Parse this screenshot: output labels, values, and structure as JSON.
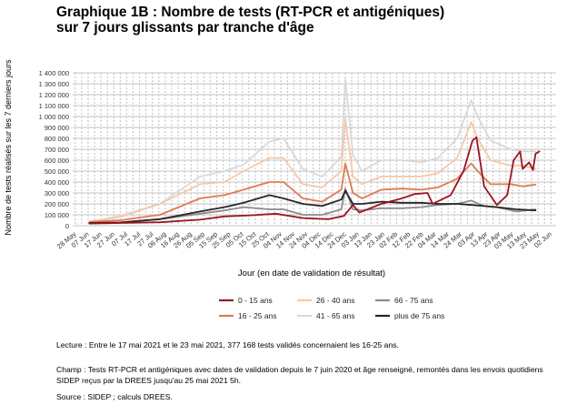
{
  "title_line1": "Graphique 1B : Nombre de tests (RT-PCR et antigéniques)",
  "title_line2": "sur 7 jours glissants par tranche d'âge",
  "notes": {
    "lecture": "Lecture : Entre le 17 mai 2021 et le 23 mai 2021, 377 168 tests validés concernaient les 16-25 ans.",
    "champ": "Champ : Tests RT-PCR et antigéniques avec dates de validation depuis le 7 juin 2020 et âge renseigné, remontés dans les envois quotidiens SIDEP reçus par la DREES jusqu'au 25 mai 2021 5h.",
    "source": "Source : SIDEP ; calculs DREES."
  },
  "colors": {
    "0-15": "#9b1421",
    "16-25": "#e07a52",
    "26-40": "#f6c8a8",
    "41-65": "#d9d9d9",
    "66-75": "#8c8c8c",
    "75plus": "#262626",
    "grid": "#d8d8d8",
    "dashed": "#c8c8c8"
  },
  "chart_data": {
    "type": "line",
    "title": "Graphique 1B : Nombre de tests (RT-PCR et antigéniques) sur 7 jours glissants par tranche d'âge",
    "xlabel": "Jour (en date de validation de résultat)",
    "ylabel": "Nombre de tests réalisés sur les 7 derniers jours",
    "x_axis_type": "date",
    "xlim": [
      "2020-05-25",
      "2021-06-05"
    ],
    "ylim": [
      0,
      1400000
    ],
    "yticks": [
      0,
      100000,
      200000,
      300000,
      400000,
      500000,
      600000,
      700000,
      800000,
      900000,
      1000000,
      1100000,
      1200000,
      1300000,
      1400000
    ],
    "ytick_labels": [
      "0",
      "100 000",
      "200 000",
      "300 000",
      "400 000",
      "500 000",
      "600 000",
      "700 000",
      "800 000",
      "900 000",
      "1 000 000",
      "1 100 000",
      "1 200 000",
      "1 300 000",
      "1 400 000"
    ],
    "xticks": [
      {
        "date": "2020-05-28",
        "label": "28 May"
      },
      {
        "date": "2020-06-07",
        "label": "07 Jun"
      },
      {
        "date": "2020-06-17",
        "label": "17 Jun"
      },
      {
        "date": "2020-06-27",
        "label": "27 Jun"
      },
      {
        "date": "2020-07-07",
        "label": "07 Jul"
      },
      {
        "date": "2020-07-17",
        "label": "17 Jul"
      },
      {
        "date": "2020-07-27",
        "label": "27 Jul"
      },
      {
        "date": "2020-08-06",
        "label": "06 Aug"
      },
      {
        "date": "2020-08-16",
        "label": "16 Aug"
      },
      {
        "date": "2020-08-26",
        "label": "26 Aug"
      },
      {
        "date": "2020-09-05",
        "label": "05 Sep"
      },
      {
        "date": "2020-09-15",
        "label": "15 Sep"
      },
      {
        "date": "2020-09-25",
        "label": "25 Sep"
      },
      {
        "date": "2020-10-05",
        "label": "05 Oct"
      },
      {
        "date": "2020-10-15",
        "label": "15 Oct"
      },
      {
        "date": "2020-10-25",
        "label": "25 Oct"
      },
      {
        "date": "2020-11-04",
        "label": "04 Nov"
      },
      {
        "date": "2020-11-14",
        "label": "14 Nov"
      },
      {
        "date": "2020-11-24",
        "label": "24 Nov"
      },
      {
        "date": "2020-12-04",
        "label": "04 Dec"
      },
      {
        "date": "2020-12-14",
        "label": "14 Dec"
      },
      {
        "date": "2020-12-24",
        "label": "24 Dec"
      },
      {
        "date": "2021-01-03",
        "label": "03 Jan"
      },
      {
        "date": "2021-01-13",
        "label": "13 Jan"
      },
      {
        "date": "2021-01-23",
        "label": "23 Jan"
      },
      {
        "date": "2021-02-02",
        "label": "02 Feb"
      },
      {
        "date": "2021-02-12",
        "label": "12 Feb"
      },
      {
        "date": "2021-02-22",
        "label": "22 Feb"
      },
      {
        "date": "2021-03-04",
        "label": "04 Mar"
      },
      {
        "date": "2021-03-14",
        "label": "14 Mar"
      },
      {
        "date": "2021-03-24",
        "label": "24 Mar"
      },
      {
        "date": "2021-04-03",
        "label": "03 Apr"
      },
      {
        "date": "2021-04-13",
        "label": "13 Apr"
      },
      {
        "date": "2021-04-23",
        "label": "23 Apr"
      },
      {
        "date": "2021-05-03",
        "label": "03 May"
      },
      {
        "date": "2021-05-13",
        "label": "13 May"
      },
      {
        "date": "2021-05-23",
        "label": "23 May"
      },
      {
        "date": "2021-06-02",
        "label": "02 Jun"
      }
    ],
    "legend_position": "bottom",
    "series": [
      {
        "name": "0 - 15 ans",
        "color_key": "0-15",
        "points": [
          [
            "2020-06-07",
            20000
          ],
          [
            "2020-07-01",
            25000
          ],
          [
            "2020-08-01",
            32000
          ],
          [
            "2020-09-01",
            55000
          ],
          [
            "2020-09-20",
            85000
          ],
          [
            "2020-10-10",
            95000
          ],
          [
            "2020-10-30",
            110000
          ],
          [
            "2020-11-20",
            70000
          ],
          [
            "2020-12-10",
            60000
          ],
          [
            "2020-12-22",
            90000
          ],
          [
            "2020-12-29",
            190000
          ],
          [
            "2021-01-03",
            120000
          ],
          [
            "2021-01-20",
            200000
          ],
          [
            "2021-02-05",
            250000
          ],
          [
            "2021-02-15",
            290000
          ],
          [
            "2021-02-25",
            300000
          ],
          [
            "2021-03-01",
            200000
          ],
          [
            "2021-03-15",
            280000
          ],
          [
            "2021-03-25",
            500000
          ],
          [
            "2021-04-01",
            780000
          ],
          [
            "2021-04-04",
            810000
          ],
          [
            "2021-04-10",
            360000
          ],
          [
            "2021-04-20",
            190000
          ],
          [
            "2021-04-28",
            280000
          ],
          [
            "2021-05-03",
            600000
          ],
          [
            "2021-05-08",
            680000
          ],
          [
            "2021-05-10",
            520000
          ],
          [
            "2021-05-15",
            580000
          ],
          [
            "2021-05-18",
            510000
          ],
          [
            "2021-05-20",
            660000
          ],
          [
            "2021-05-23",
            680000
          ]
        ]
      },
      {
        "name": "16 - 25 ans",
        "color_key": "16-25",
        "points": [
          [
            "2020-06-07",
            35000
          ],
          [
            "2020-07-01",
            50000
          ],
          [
            "2020-08-01",
            100000
          ],
          [
            "2020-09-01",
            250000
          ],
          [
            "2020-09-20",
            280000
          ],
          [
            "2020-10-05",
            330000
          ],
          [
            "2020-10-25",
            400000
          ],
          [
            "2020-11-05",
            400000
          ],
          [
            "2020-11-20",
            250000
          ],
          [
            "2020-12-05",
            220000
          ],
          [
            "2020-12-20",
            330000
          ],
          [
            "2020-12-23",
            570000
          ],
          [
            "2020-12-29",
            300000
          ],
          [
            "2021-01-05",
            250000
          ],
          [
            "2021-01-20",
            330000
          ],
          [
            "2021-02-05",
            340000
          ],
          [
            "2021-02-20",
            330000
          ],
          [
            "2021-03-05",
            350000
          ],
          [
            "2021-03-20",
            430000
          ],
          [
            "2021-03-31",
            570000
          ],
          [
            "2021-04-05",
            500000
          ],
          [
            "2021-04-15",
            380000
          ],
          [
            "2021-05-01",
            380000
          ],
          [
            "2021-05-10",
            360000
          ],
          [
            "2021-05-20",
            377168
          ]
        ]
      },
      {
        "name": "26 - 40 ans",
        "color_key": "26-40",
        "points": [
          [
            "2020-06-07",
            35000
          ],
          [
            "2020-07-01",
            80000
          ],
          [
            "2020-08-01",
            200000
          ],
          [
            "2020-09-01",
            380000
          ],
          [
            "2020-09-20",
            400000
          ],
          [
            "2020-10-05",
            500000
          ],
          [
            "2020-10-25",
            620000
          ],
          [
            "2020-11-05",
            620000
          ],
          [
            "2020-11-20",
            380000
          ],
          [
            "2020-12-05",
            350000
          ],
          [
            "2020-12-20",
            500000
          ],
          [
            "2020-12-23",
            980000
          ],
          [
            "2020-12-29",
            450000
          ],
          [
            "2021-01-05",
            380000
          ],
          [
            "2021-01-20",
            450000
          ],
          [
            "2021-02-05",
            450000
          ],
          [
            "2021-02-20",
            450000
          ],
          [
            "2021-03-05",
            480000
          ],
          [
            "2021-03-20",
            620000
          ],
          [
            "2021-03-31",
            950000
          ],
          [
            "2021-04-05",
            800000
          ],
          [
            "2021-04-15",
            600000
          ],
          [
            "2021-05-01",
            550000
          ],
          [
            "2021-05-10",
            550000
          ],
          [
            "2021-05-20",
            520000
          ]
        ]
      },
      {
        "name": "41 - 65 ans",
        "color_key": "41-65",
        "points": [
          [
            "2020-06-07",
            35000
          ],
          [
            "2020-07-01",
            90000
          ],
          [
            "2020-08-01",
            200000
          ],
          [
            "2020-09-01",
            450000
          ],
          [
            "2020-09-20",
            500000
          ],
          [
            "2020-10-05",
            560000
          ],
          [
            "2020-10-25",
            770000
          ],
          [
            "2020-11-05",
            800000
          ],
          [
            "2020-11-20",
            520000
          ],
          [
            "2020-12-05",
            450000
          ],
          [
            "2020-12-20",
            630000
          ],
          [
            "2020-12-23",
            1340000
          ],
          [
            "2020-12-29",
            650000
          ],
          [
            "2021-01-05",
            500000
          ],
          [
            "2021-01-20",
            600000
          ],
          [
            "2021-02-05",
            600000
          ],
          [
            "2021-02-20",
            580000
          ],
          [
            "2021-03-05",
            620000
          ],
          [
            "2021-03-20",
            800000
          ],
          [
            "2021-03-31",
            1150000
          ],
          [
            "2021-04-05",
            1000000
          ],
          [
            "2021-04-15",
            780000
          ],
          [
            "2021-05-01",
            700000
          ],
          [
            "2021-05-10",
            680000
          ],
          [
            "2021-05-20",
            680000
          ]
        ]
      },
      {
        "name": "66 - 75 ans",
        "color_key": "66-75",
        "points": [
          [
            "2020-06-07",
            25000
          ],
          [
            "2020-07-01",
            30000
          ],
          [
            "2020-08-01",
            60000
          ],
          [
            "2020-09-01",
            110000
          ],
          [
            "2020-09-20",
            140000
          ],
          [
            "2020-10-05",
            170000
          ],
          [
            "2020-10-25",
            150000
          ],
          [
            "2020-11-05",
            150000
          ],
          [
            "2020-11-20",
            100000
          ],
          [
            "2020-12-05",
            100000
          ],
          [
            "2020-12-20",
            150000
          ],
          [
            "2020-12-23",
            340000
          ],
          [
            "2020-12-29",
            150000
          ],
          [
            "2021-01-05",
            140000
          ],
          [
            "2021-01-20",
            160000
          ],
          [
            "2021-02-05",
            160000
          ],
          [
            "2021-02-20",
            170000
          ],
          [
            "2021-03-05",
            190000
          ],
          [
            "2021-03-20",
            200000
          ],
          [
            "2021-03-31",
            230000
          ],
          [
            "2021-04-10",
            180000
          ],
          [
            "2021-04-20",
            170000
          ],
          [
            "2021-05-05",
            130000
          ],
          [
            "2021-05-20",
            150000
          ]
        ]
      },
      {
        "name": "plus de 75 ans",
        "color_key": "75plus",
        "points": [
          [
            "2020-06-07",
            25000
          ],
          [
            "2020-07-01",
            30000
          ],
          [
            "2020-08-01",
            60000
          ],
          [
            "2020-09-01",
            130000
          ],
          [
            "2020-09-20",
            170000
          ],
          [
            "2020-10-05",
            210000
          ],
          [
            "2020-10-25",
            280000
          ],
          [
            "2020-11-05",
            250000
          ],
          [
            "2020-11-20",
            200000
          ],
          [
            "2020-12-05",
            180000
          ],
          [
            "2020-12-20",
            240000
          ],
          [
            "2020-12-23",
            320000
          ],
          [
            "2020-12-29",
            200000
          ],
          [
            "2021-01-05",
            200000
          ],
          [
            "2021-01-20",
            220000
          ],
          [
            "2021-02-05",
            210000
          ],
          [
            "2021-02-20",
            210000
          ],
          [
            "2021-03-05",
            200000
          ],
          [
            "2021-03-20",
            200000
          ],
          [
            "2021-03-31",
            190000
          ],
          [
            "2021-04-10",
            180000
          ],
          [
            "2021-04-20",
            170000
          ],
          [
            "2021-05-05",
            150000
          ],
          [
            "2021-05-20",
            140000
          ]
        ]
      }
    ]
  }
}
